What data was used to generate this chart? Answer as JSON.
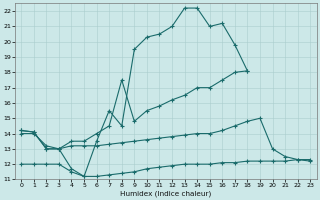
{
  "xlabel": "Humidex (Indice chaleur)",
  "xlim": [
    -0.5,
    23.5
  ],
  "ylim": [
    11,
    22.5
  ],
  "bg_color": "#cce8e8",
  "grid_color": "#aacece",
  "line_color": "#1a6b6b",
  "x_ticks": [
    0,
    1,
    2,
    3,
    4,
    5,
    6,
    7,
    8,
    9,
    10,
    11,
    12,
    13,
    14,
    15,
    16,
    17,
    18,
    19,
    20,
    21,
    22,
    23
  ],
  "y_ticks": [
    11,
    12,
    13,
    14,
    15,
    16,
    17,
    18,
    19,
    20,
    21,
    22
  ],
  "line1_x": [
    0,
    1,
    2,
    3,
    4,
    5,
    6,
    7,
    8,
    9,
    10,
    11,
    12,
    13,
    14,
    15,
    16,
    17,
    18
  ],
  "line1_y": [
    14.2,
    14.1,
    13.0,
    13.0,
    11.7,
    11.2,
    13.5,
    15.5,
    14.5,
    19.5,
    20.3,
    20.5,
    21.0,
    22.2,
    22.2,
    21.0,
    21.2,
    19.8,
    18.1
  ],
  "line2_x": [
    0,
    1,
    2,
    3,
    4,
    5,
    6,
    7,
    8,
    9,
    10,
    11,
    12,
    13,
    14,
    15,
    16,
    17,
    18
  ],
  "line2_y": [
    14.2,
    14.1,
    13.0,
    13.0,
    13.5,
    13.5,
    14.0,
    14.5,
    17.5,
    14.8,
    15.5,
    15.8,
    16.2,
    16.5,
    17.0,
    17.0,
    17.5,
    18.0,
    18.1
  ],
  "line3_x": [
    0,
    1,
    2,
    3,
    4,
    5,
    6,
    7,
    8,
    9,
    10,
    11,
    12,
    13,
    14,
    15,
    16,
    17,
    18,
    19,
    20,
    21,
    22,
    23
  ],
  "line3_y": [
    14.0,
    14.0,
    13.2,
    13.0,
    13.2,
    13.2,
    13.2,
    13.3,
    13.4,
    13.5,
    13.6,
    13.7,
    13.8,
    13.9,
    14.0,
    14.0,
    14.2,
    14.5,
    14.8,
    15.0,
    13.0,
    12.5,
    12.3,
    12.2
  ],
  "line4_x": [
    0,
    1,
    2,
    3,
    4,
    5,
    6,
    7,
    8,
    9,
    10,
    11,
    12,
    13,
    14,
    15,
    16,
    17,
    18,
    19,
    20,
    21,
    22,
    23
  ],
  "line4_y": [
    12.0,
    12.0,
    12.0,
    12.0,
    11.5,
    11.2,
    11.2,
    11.3,
    11.4,
    11.5,
    11.7,
    11.8,
    11.9,
    12.0,
    12.0,
    12.0,
    12.1,
    12.1,
    12.2,
    12.2,
    12.2,
    12.2,
    12.3,
    12.3
  ]
}
